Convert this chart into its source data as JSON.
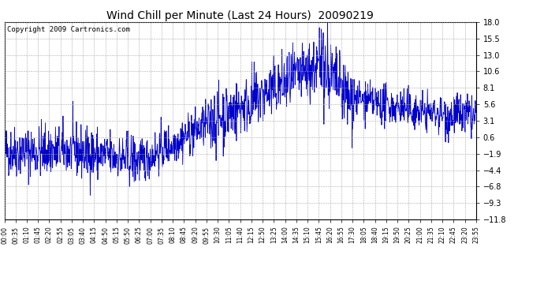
{
  "title": "Wind Chill per Minute (Last 24 Hours)  20090219",
  "copyright": "Copyright 2009 Cartronics.com",
  "line_color": "#0000cc",
  "background_color": "#ffffff",
  "plot_bg_color": "#ffffff",
  "grid_color": "#aaaaaa",
  "yticks": [
    18.0,
    15.5,
    13.0,
    10.6,
    8.1,
    5.6,
    3.1,
    0.6,
    -1.9,
    -4.4,
    -6.8,
    -9.3,
    -11.8
  ],
  "ylim": [
    -11.8,
    18.0
  ],
  "xtick_labels": [
    "00:00",
    "00:35",
    "01:10",
    "01:45",
    "02:20",
    "02:55",
    "03:05",
    "03:40",
    "04:15",
    "04:50",
    "05:15",
    "05:50",
    "06:25",
    "07:00",
    "07:35",
    "08:10",
    "08:45",
    "09:20",
    "09:55",
    "10:30",
    "11:05",
    "11:40",
    "12:15",
    "12:50",
    "13:25",
    "14:00",
    "14:35",
    "15:10",
    "15:45",
    "16:20",
    "16:55",
    "17:30",
    "18:05",
    "18:40",
    "19:15",
    "19:50",
    "20:25",
    "21:00",
    "21:35",
    "22:10",
    "22:45",
    "23:20",
    "23:55"
  ],
  "num_points": 1440,
  "title_fontsize": 10,
  "copyright_fontsize": 6.5,
  "ytick_fontsize": 7,
  "xtick_fontsize": 5.5
}
